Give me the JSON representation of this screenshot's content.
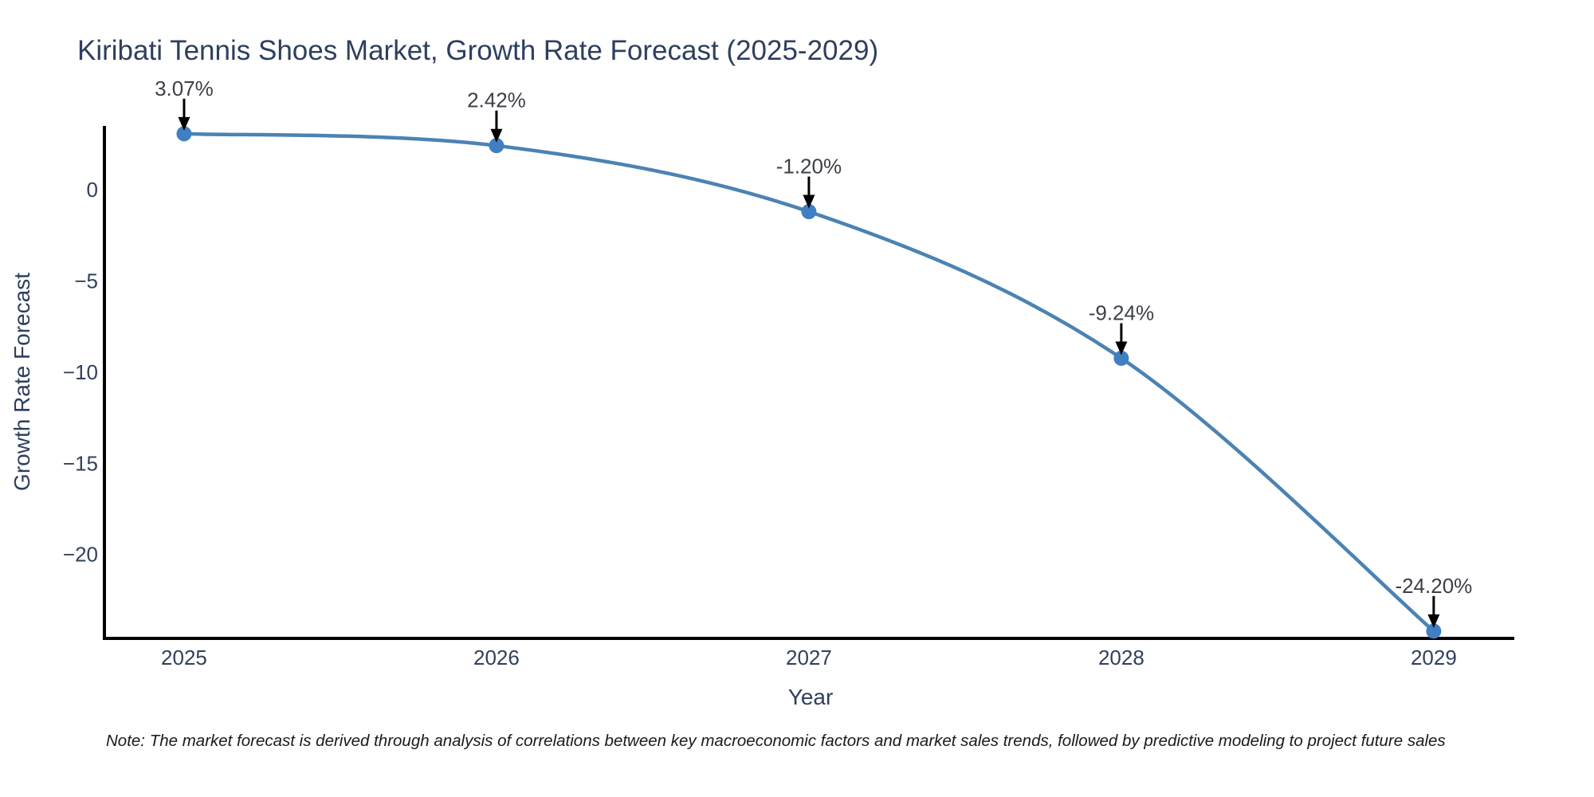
{
  "chart": {
    "title": "Kiribati Tennis Shoes Market, Growth Rate Forecast (2025-2029)",
    "xlabel": "Year",
    "ylabel": "Growth Rate Forecast",
    "note": "Note: The market forecast is derived through analysis of correlations between key macroeconomic factors and market sales trends, followed by predictive modeling to project future sales"
  },
  "chart_data": {
    "type": "line",
    "title": "Kiribati Tennis Shoes Market, Growth Rate Forecast (2025-2029)",
    "xlabel": "Year",
    "ylabel": "Growth Rate Forecast",
    "x": [
      2025,
      2026,
      2027,
      2028,
      2029
    ],
    "series": [
      {
        "name": "Growth Rate Forecast",
        "values": [
          3.07,
          2.42,
          -1.2,
          -9.24,
          -24.2
        ]
      }
    ],
    "point_labels": [
      "3.07%",
      "2.42%",
      "-1.20%",
      "-9.24%",
      "-24.20%"
    ],
    "xticks": {
      "values": [
        2025,
        2026,
        2027,
        2028,
        2029
      ],
      "labels": [
        "2025",
        "2026",
        "2027",
        "2028",
        "2029"
      ]
    },
    "yticks": {
      "values": [
        0,
        -5,
        -10,
        -15,
        -20
      ],
      "labels": [
        "0",
        "−5",
        "−10",
        "−15",
        "−20"
      ]
    },
    "xlim": [
      2024.745,
      2029.258
    ],
    "ylim": [
      -24.6,
      3.5
    ],
    "grid": false,
    "legend": "none",
    "line_shape": "spline",
    "annotation_style": "arrow-down-to-point",
    "colors": {
      "line": "#4b83b3",
      "marker": "#3f7fc2",
      "arrow": "#000000",
      "axis": "#000000",
      "title_text": "#2e3f5e",
      "axis_label_text": "#2e3f5e",
      "tick_text": "#31405c",
      "annotation_text": "#3c4046",
      "note_text": "#1a1a1a",
      "background": "#ffffff"
    }
  }
}
